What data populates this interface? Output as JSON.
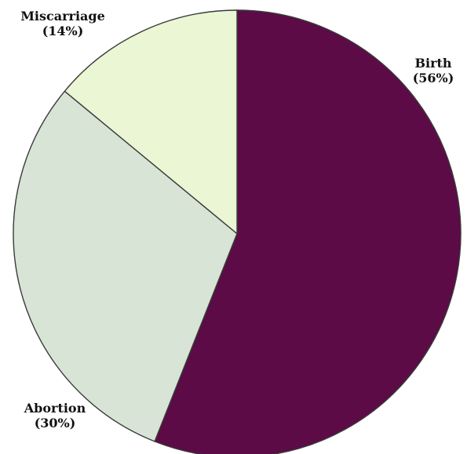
{
  "chart_data": {
    "type": "pie",
    "title": "",
    "start_angle_deg": 0,
    "direction": "clockwise",
    "slices": [
      {
        "label": "Birth",
        "percent_label": "(56%)",
        "value": 56,
        "color": "#5c0b46"
      },
      {
        "label": "Abortion",
        "percent_label": "(30%)",
        "value": 30,
        "color": "#d7e4d6"
      },
      {
        "label": "Miscarriage",
        "percent_label": "(14%)",
        "value": 14,
        "color": "#eaf6d4"
      }
    ],
    "legend": "none",
    "edge_color": "#3a3a3a"
  }
}
